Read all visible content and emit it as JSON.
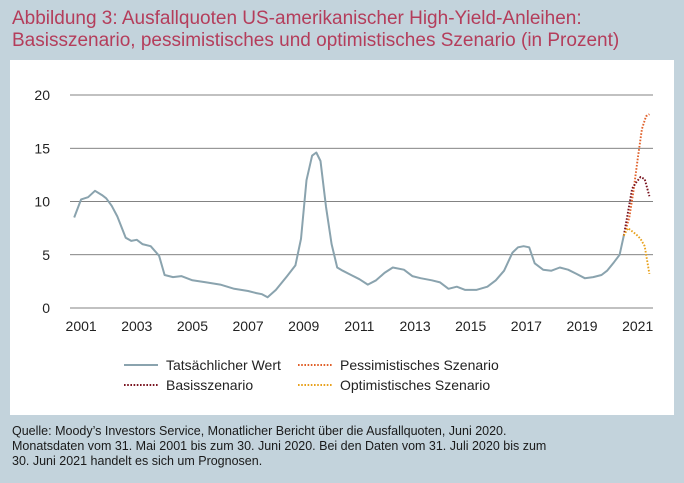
{
  "title": {
    "line1": "Abbildung 3: Ausfallquoten US-amerikanischer High-Yield-Anleihen:",
    "line2": "Basisszenario, pessimistisches und optimistisches Szenario (in Prozent)"
  },
  "source": {
    "line1": "Quelle: Moody’s Investors Service, Monatlicher Bericht über die Ausfallquoten, Juni 2020.",
    "line2": "Monatsdaten vom 31. Mai 2001 bis zum 30. Juni 2020. Bei den Daten vom 31. Juli 2020 bis zum",
    "line3": "30. Juni 2021 handelt es sich um Prognosen."
  },
  "chart_data": {
    "type": "line",
    "xlim": [
      2000.6,
      2021.55
    ],
    "ylim": [
      0,
      20
    ],
    "xticks": [
      2001,
      2003,
      2005,
      2007,
      2009,
      2011,
      2013,
      2015,
      2017,
      2019,
      2021
    ],
    "xtick_labels": [
      "2001",
      "2003",
      "2005",
      "2007",
      "2009",
      "2011",
      "2013",
      "2015",
      "2017",
      "2019",
      "2021"
    ],
    "yticks": [
      0,
      5,
      10,
      15,
      20
    ],
    "ytick_labels": [
      "0",
      "5",
      "10",
      "15",
      "20"
    ],
    "grid": "horizontal",
    "legend_position": "bottom",
    "series": [
      {
        "name": "Tatsächlicher Wert",
        "color": "#8aa3ae",
        "dash": "solid",
        "x": [
          2000.75,
          2001.0,
          2001.25,
          2001.5,
          2001.75,
          2001.9,
          2002.1,
          2002.3,
          2002.6,
          2002.8,
          2003.0,
          2003.2,
          2003.5,
          2003.8,
          2004.0,
          2004.3,
          2004.6,
          2005.0,
          2005.5,
          2006.0,
          2006.5,
          2007.0,
          2007.3,
          2007.5,
          2007.7,
          2008.0,
          2008.4,
          2008.7,
          2008.9,
          2009.1,
          2009.3,
          2009.45,
          2009.6,
          2009.8,
          2010.0,
          2010.2,
          2010.4,
          2010.7,
          2011.0,
          2011.3,
          2011.6,
          2011.9,
          2012.2,
          2012.6,
          2012.9,
          2013.2,
          2013.6,
          2013.9,
          2014.2,
          2014.5,
          2014.8,
          2015.2,
          2015.6,
          2015.9,
          2016.2,
          2016.5,
          2016.7,
          2016.9,
          2017.1,
          2017.3,
          2017.6,
          2017.9,
          2018.2,
          2018.5,
          2018.8,
          2019.1,
          2019.4,
          2019.7,
          2019.9,
          2020.15,
          2020.35,
          2020.5
        ],
        "values": [
          8.5,
          10.2,
          10.4,
          11.0,
          10.6,
          10.3,
          9.6,
          8.6,
          6.6,
          6.3,
          6.4,
          6.0,
          5.8,
          4.9,
          3.1,
          2.9,
          3.0,
          2.6,
          2.4,
          2.2,
          1.8,
          1.6,
          1.4,
          1.3,
          1.0,
          1.7,
          3.0,
          4.0,
          6.5,
          12.0,
          14.3,
          14.6,
          13.8,
          9.5,
          6.0,
          3.8,
          3.5,
          3.1,
          2.7,
          2.2,
          2.6,
          3.3,
          3.8,
          3.6,
          3.0,
          2.8,
          2.6,
          2.4,
          1.8,
          2.0,
          1.7,
          1.7,
          2.0,
          2.6,
          3.5,
          5.2,
          5.7,
          5.8,
          5.7,
          4.2,
          3.6,
          3.5,
          3.8,
          3.6,
          3.2,
          2.8,
          2.9,
          3.1,
          3.5,
          4.3,
          5.0,
          6.8
        ]
      },
      {
        "name": "Pessimistisches Szenario",
        "color": "#e0602a",
        "dash": "dot",
        "x": [
          2020.5,
          2020.7,
          2020.85,
          2021.0,
          2021.15,
          2021.3,
          2021.42
        ],
        "values": [
          6.8,
          8.5,
          11.0,
          14.0,
          16.8,
          18.0,
          18.2
        ]
      },
      {
        "name": "Basisszenario",
        "color": "#7a1420",
        "dash": "dot",
        "x": [
          2020.5,
          2020.65,
          2020.8,
          2020.95,
          2021.1,
          2021.25,
          2021.42
        ],
        "values": [
          6.8,
          9.0,
          11.2,
          11.8,
          12.3,
          12.1,
          10.5
        ]
      },
      {
        "name": "Optimistisches Szenario",
        "color": "#e8a21e",
        "dash": "dot",
        "x": [
          2020.5,
          2020.65,
          2020.8,
          2020.95,
          2021.1,
          2021.25,
          2021.42
        ],
        "values": [
          6.8,
          7.5,
          7.2,
          6.9,
          6.5,
          5.8,
          3.2
        ]
      }
    ]
  }
}
